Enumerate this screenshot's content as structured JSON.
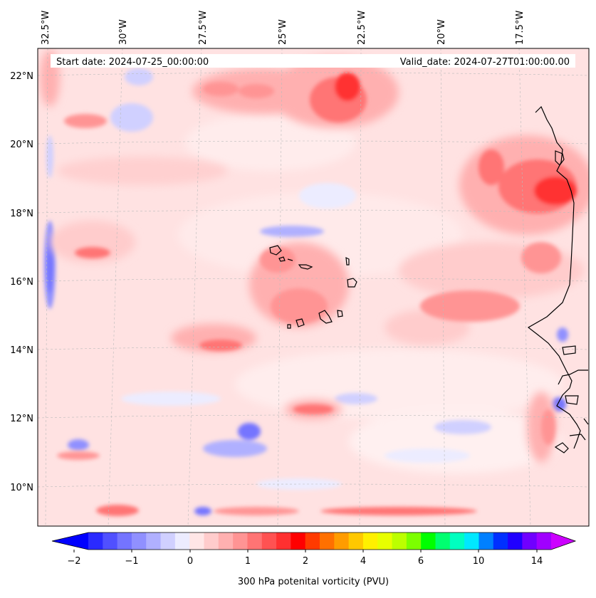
{
  "header": {
    "start_date": "Start date: 2024-07-25_00:00:00",
    "valid_date": "Valid_date: 2024-07-27T01:00:00.00"
  },
  "map": {
    "longitude_labels": [
      "32.5°W",
      "30°W",
      "27.5°W",
      "25°W",
      "22.5°W",
      "20°W",
      "17.5°W"
    ],
    "latitude_labels": [
      "22°N",
      "20°N",
      "18°N",
      "16°N",
      "14°N",
      "12°N",
      "10°N"
    ],
    "extent": {
      "lon_min": -33.0,
      "lon_max": -15.5,
      "lat_min": 8.9,
      "lat_max": 22.8
    },
    "gridlines": true,
    "coastlines": true,
    "variable": "300 hPa potential vorticity"
  },
  "colorbar": {
    "label": "300 hPa potenital vorticity (PVU)",
    "tick_labels": [
      "−2",
      "−1",
      "0",
      "1",
      "2",
      "4",
      "6",
      "10",
      "14"
    ],
    "extend": "both",
    "colors": [
      "#0000ff",
      "#2a2aff",
      "#5050ff",
      "#7474ff",
      "#9090ff",
      "#b0b0ff",
      "#d0d0ff",
      "#ececff",
      "#ffe6e6",
      "#ffcccc",
      "#ffb0b0",
      "#ff9494",
      "#ff7474",
      "#ff5252",
      "#ff3030",
      "#ff0000",
      "#ff3a00",
      "#ff7000",
      "#ff9c00",
      "#ffc800",
      "#fff000",
      "#e8ff00",
      "#bcff00",
      "#7cff00",
      "#00ff00",
      "#00ff70",
      "#00ffc0",
      "#00e8ff",
      "#0080ff",
      "#0030ff",
      "#2000ff",
      "#7000ff",
      "#a000ff",
      "#cc00ff"
    ]
  }
}
